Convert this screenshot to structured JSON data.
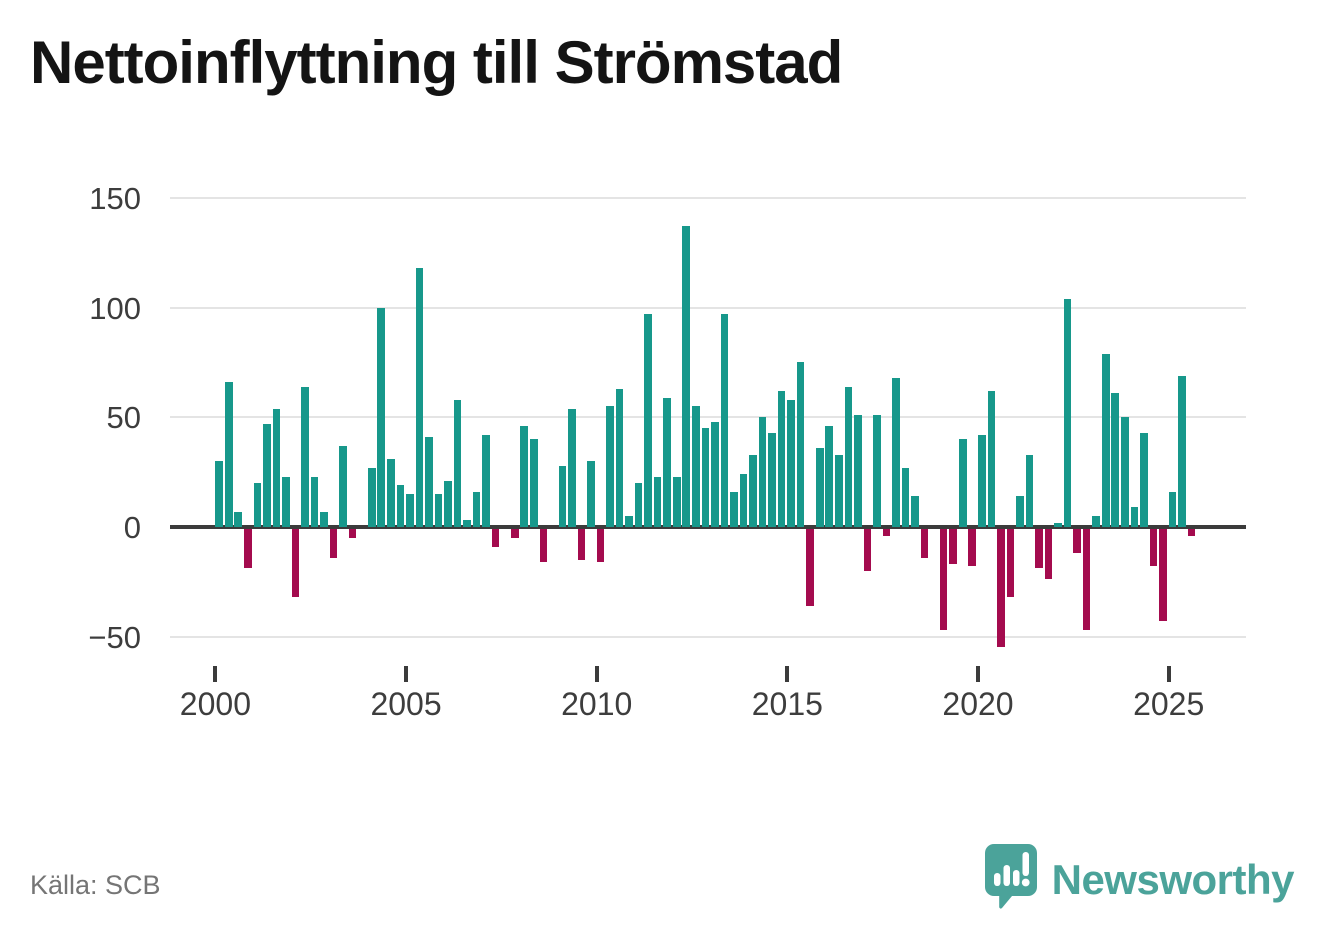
{
  "header": {
    "title": "Nettoinflyttning till Strömstad"
  },
  "footer": {
    "source": "Källa: SCB",
    "brand_name": "Newsworthy"
  },
  "colors": {
    "positive_bar": "#17988b",
    "negative_bar": "#a40b4e",
    "zero_axis": "#3b3b3b",
    "gridline": "#e4e4e4",
    "tick_label": "#3d3d3d",
    "title_text": "#141414",
    "source_text": "#757575",
    "brand_teal": "#4ba39a"
  },
  "chart_data": {
    "type": "bar",
    "title": "Nettoinflyttning till Strömstad",
    "x_unit": "quarter",
    "period_start": "2000 Q1",
    "period_end": "2025 Q3",
    "grid": true,
    "legend": false,
    "xticks": [
      2000,
      2005,
      2010,
      2015,
      2020,
      2025
    ],
    "yticks": [
      -50,
      0,
      50,
      100,
      150
    ],
    "ylim": [
      -62,
      152
    ],
    "values_by_year": {
      "2000": [
        30,
        66,
        7,
        -18
      ],
      "2001": [
        20,
        47,
        54,
        23
      ],
      "2002": [
        -31,
        64,
        23,
        7
      ],
      "2003": [
        -13,
        37,
        -4,
        0
      ],
      "2004": [
        27,
        100,
        31,
        19
      ],
      "2005": [
        15,
        118,
        41,
        15
      ],
      "2006": [
        21,
        58,
        3,
        16
      ],
      "2007": [
        42,
        -8,
        0,
        -4
      ],
      "2008": [
        46,
        40,
        -15,
        0
      ],
      "2009": [
        28,
        54,
        -14,
        30
      ],
      "2010": [
        -15,
        55,
        63,
        5
      ],
      "2011": [
        20,
        97,
        23,
        59
      ],
      "2012": [
        23,
        137,
        55,
        45
      ],
      "2013": [
        48,
        97,
        16,
        24
      ],
      "2014": [
        33,
        50,
        43,
        62
      ],
      "2015": [
        58,
        75,
        -35,
        36
      ],
      "2016": [
        46,
        33,
        64,
        51
      ],
      "2017": [
        -19,
        51,
        -3,
        68
      ],
      "2018": [
        27,
        14,
        -13,
        0
      ],
      "2019": [
        -46,
        -16,
        40,
        -17
      ],
      "2020": [
        42,
        62,
        -54,
        -31
      ],
      "2021": [
        14,
        33,
        -18,
        -23
      ],
      "2022": [
        2,
        104,
        -11,
        -46
      ],
      "2023": [
        5,
        79,
        61,
        50
      ],
      "2024": [
        9,
        43,
        -17,
        -42
      ],
      "2025": [
        16,
        69,
        -3
      ]
    }
  }
}
